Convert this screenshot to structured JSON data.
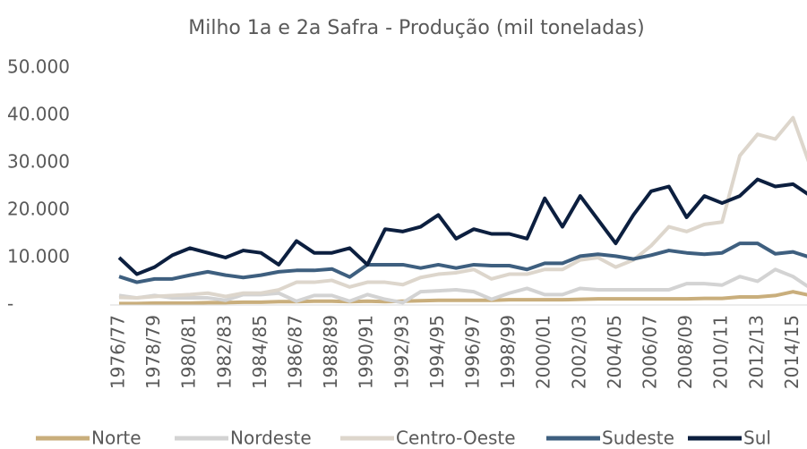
{
  "chart_data": {
    "type": "line",
    "title": "Milho  1a e 2a Safra - Produção (mil toneladas)",
    "categories": [
      "1976/77",
      null,
      "1978/79",
      null,
      "1980/81",
      null,
      "1982/83",
      null,
      "1984/85",
      null,
      "1986/87",
      null,
      "1988/89",
      null,
      "1990/91",
      null,
      "1992/93",
      null,
      "1994/95",
      null,
      "1996/97",
      null,
      "1998/99",
      null,
      "2000/01",
      null,
      "2002/03",
      null,
      "2004/05",
      null,
      "2006/07",
      null,
      "2008/09",
      null,
      "2010/11",
      null,
      "2012/13",
      null,
      "2014/15",
      null
    ],
    "series": [
      {
        "name": "Norte",
        "color": "#c9ae7c",
        "values": [
          300,
          300,
          400,
          400,
          400,
          500,
          500,
          600,
          600,
          700,
          700,
          800,
          800,
          700,
          800,
          700,
          800,
          900,
          1000,
          1000,
          1000,
          1000,
          1100,
          1100,
          1100,
          1100,
          1200,
          1300,
          1300,
          1300,
          1300,
          1300,
          1300,
          1400,
          1400,
          1700,
          1700,
          2000,
          2800,
          2000
        ]
      },
      {
        "name": "Nordeste",
        "color": "#d3d3d3",
        "values": [
          2000,
          1500,
          2000,
          1500,
          1500,
          1500,
          1000,
          2200,
          2200,
          2500,
          800,
          2000,
          2000,
          800,
          2200,
          1200,
          500,
          2800,
          3000,
          3200,
          2800,
          1200,
          2500,
          3500,
          2200,
          2200,
          3500,
          3200,
          3200,
          3200,
          3200,
          3200,
          4500,
          4500,
          4200,
          6000,
          5000,
          7500,
          6000,
          3500
        ]
      },
      {
        "name": "Centro-Oeste",
        "color": "#ddd6cc",
        "values": [
          1600,
          1500,
          1800,
          2000,
          2200,
          2500,
          1800,
          2500,
          2500,
          3200,
          4800,
          4800,
          5200,
          3800,
          4800,
          4800,
          4300,
          5800,
          6500,
          6800,
          7500,
          5500,
          6500,
          6500,
          7500,
          7500,
          9500,
          10000,
          8000,
          9500,
          12500,
          16500,
          15500,
          17000,
          17500,
          31500,
          36000,
          35000,
          39500,
          29000
        ]
      },
      {
        "name": "Sudeste",
        "color": "#3e5f7f",
        "values": [
          6000,
          4800,
          5500,
          5500,
          6300,
          7000,
          6300,
          5800,
          6300,
          7000,
          7300,
          7300,
          7600,
          5900,
          8500,
          8500,
          8500,
          7800,
          8500,
          7800,
          8500,
          8300,
          8300,
          7500,
          8800,
          8800,
          10300,
          10700,
          10300,
          9700,
          10500,
          11500,
          11000,
          10700,
          11000,
          13000,
          13000,
          10800,
          11200,
          10000
        ]
      },
      {
        "name": "Sul",
        "color": "#0c1f3f",
        "values": [
          10000,
          6500,
          8000,
          10500,
          12000,
          11000,
          10000,
          11500,
          11000,
          8500,
          13500,
          11000,
          11000,
          12000,
          8500,
          16000,
          15500,
          16500,
          19000,
          14000,
          16000,
          15000,
          15000,
          14000,
          22500,
          16500,
          23000,
          18000,
          13000,
          19000,
          24000,
          25000,
          18500,
          23000,
          21500,
          23000,
          26500,
          25000,
          25500,
          23000
        ]
      }
    ],
    "ylim": [
      0,
      50000
    ],
    "yticks": [
      {
        "value": 0,
        "label": "-"
      },
      {
        "value": 10000,
        "label": "10.000"
      },
      {
        "value": 20000,
        "label": "20.000"
      },
      {
        "value": 30000,
        "label": "30.000"
      },
      {
        "value": 40000,
        "label": "40.000"
      },
      {
        "value": 50000,
        "label": "50.000"
      }
    ],
    "legend": "bottom"
  }
}
